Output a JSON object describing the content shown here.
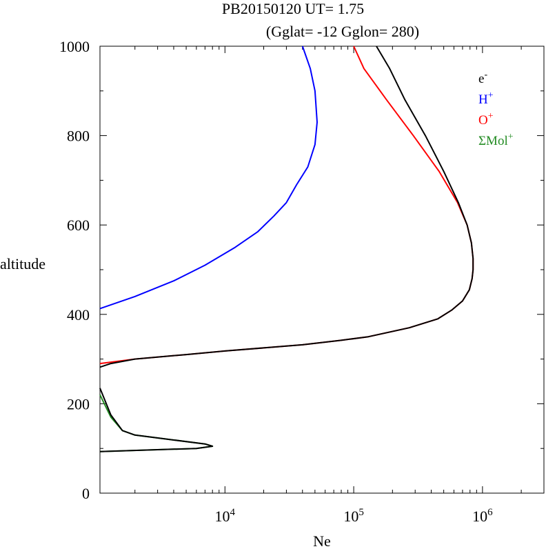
{
  "chart_data": {
    "type": "line",
    "title": "PB20150120   UT=  1.75",
    "subtitle": "(Gglat= -12   Gglon=  280)",
    "xlabel": "Ne",
    "ylabel": "altitude",
    "xscale": "log",
    "xlim": [
      1070,
      3000000
    ],
    "ylim": [
      0,
      1000
    ],
    "x_ticks": [
      {
        "value": 10000,
        "base": "10",
        "exp": "4"
      },
      {
        "value": 100000,
        "base": "10",
        "exp": "5"
      },
      {
        "value": 1000000,
        "base": "10",
        "exp": "6"
      }
    ],
    "y_ticks": [
      "0",
      "200",
      "400",
      "600",
      "800",
      "1000"
    ],
    "grid": false,
    "legend_position": "top-right",
    "series": [
      {
        "name": "e",
        "sup": "-",
        "color": "#000000",
        "points": [
          [
            1070,
            93
          ],
          [
            6000,
            100
          ],
          [
            8000,
            105
          ],
          [
            7000,
            110
          ],
          [
            2000,
            130
          ],
          [
            1600,
            140
          ],
          [
            1300,
            175
          ],
          [
            1070,
            235
          ],
          [
            null,
            null
          ],
          [
            1070,
            282
          ],
          [
            1300,
            290
          ],
          [
            2000,
            300
          ],
          [
            5000,
            310
          ],
          [
            10000,
            318
          ],
          [
            20000,
            325
          ],
          [
            40000,
            332
          ],
          [
            80000,
            342
          ],
          [
            130000,
            350
          ],
          [
            270000,
            370
          ],
          [
            450000,
            390
          ],
          [
            580000,
            410
          ],
          [
            700000,
            430
          ],
          [
            790000,
            455
          ],
          [
            830000,
            480
          ],
          [
            845000,
            500
          ],
          [
            845000,
            525
          ],
          [
            820000,
            560
          ],
          [
            760000,
            600
          ],
          [
            650000,
            650
          ],
          [
            500000,
            720
          ],
          [
            360000,
            800
          ],
          [
            250000,
            880
          ],
          [
            190000,
            950
          ],
          [
            150000,
            1000
          ]
        ]
      },
      {
        "name": "H",
        "sup": "+",
        "color": "#0000ff",
        "points": [
          [
            1070,
            413
          ],
          [
            2000,
            440
          ],
          [
            4000,
            475
          ],
          [
            7000,
            510
          ],
          [
            12000,
            550
          ],
          [
            18000,
            585
          ],
          [
            24000,
            620
          ],
          [
            30000,
            650
          ],
          [
            36000,
            690
          ],
          [
            44000,
            730
          ],
          [
            50000,
            780
          ],
          [
            52000,
            830
          ],
          [
            50000,
            900
          ],
          [
            46000,
            950
          ],
          [
            40000,
            1000
          ]
        ]
      },
      {
        "name": "O",
        "sup": "+",
        "color": "#ff0000",
        "points": [
          [
            1070,
            290
          ],
          [
            2000,
            300
          ],
          [
            5000,
            310
          ],
          [
            10000,
            318
          ],
          [
            20000,
            325
          ],
          [
            40000,
            332
          ],
          [
            80000,
            342
          ],
          [
            130000,
            350
          ],
          [
            270000,
            370
          ],
          [
            450000,
            390
          ],
          [
            580000,
            410
          ],
          [
            700000,
            430
          ],
          [
            790000,
            455
          ],
          [
            830000,
            480
          ],
          [
            845000,
            500
          ],
          [
            845000,
            525
          ],
          [
            820000,
            560
          ],
          [
            760000,
            600
          ],
          [
            640000,
            650
          ],
          [
            460000,
            720
          ],
          [
            290000,
            800
          ],
          [
            180000,
            880
          ],
          [
            120000,
            950
          ],
          [
            100000,
            1000
          ]
        ]
      },
      {
        "name": "ΣMol",
        "sup": "+",
        "color": "#228b22",
        "points": [
          [
            1070,
            93
          ],
          [
            6000,
            100
          ],
          [
            8000,
            105
          ],
          [
            7000,
            110
          ],
          [
            2000,
            130
          ],
          [
            1600,
            140
          ],
          [
            1300,
            170
          ],
          [
            1070,
            220
          ]
        ]
      }
    ]
  }
}
